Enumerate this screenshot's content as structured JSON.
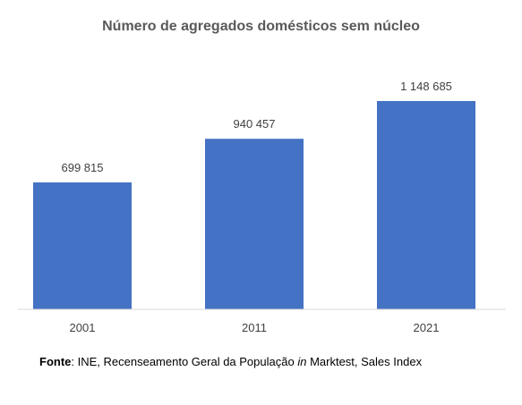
{
  "chart_data": {
    "type": "bar",
    "title": "Número de agregados domésticos sem núcleo",
    "categories": [
      "2001",
      "2011",
      "2021"
    ],
    "values": [
      699815,
      940457,
      1148685
    ],
    "data_labels": [
      "699 815",
      "940 457",
      "1 148 685"
    ],
    "ylim": [
      0,
      1148685
    ],
    "grid": false,
    "legend": "none",
    "bar_color": "#4472C4"
  },
  "source": {
    "label": "Fonte",
    "text_before": ": INE, Recenseamento Geral da População ",
    "italic": "in",
    "text_after": " Marktest, Sales Index"
  }
}
